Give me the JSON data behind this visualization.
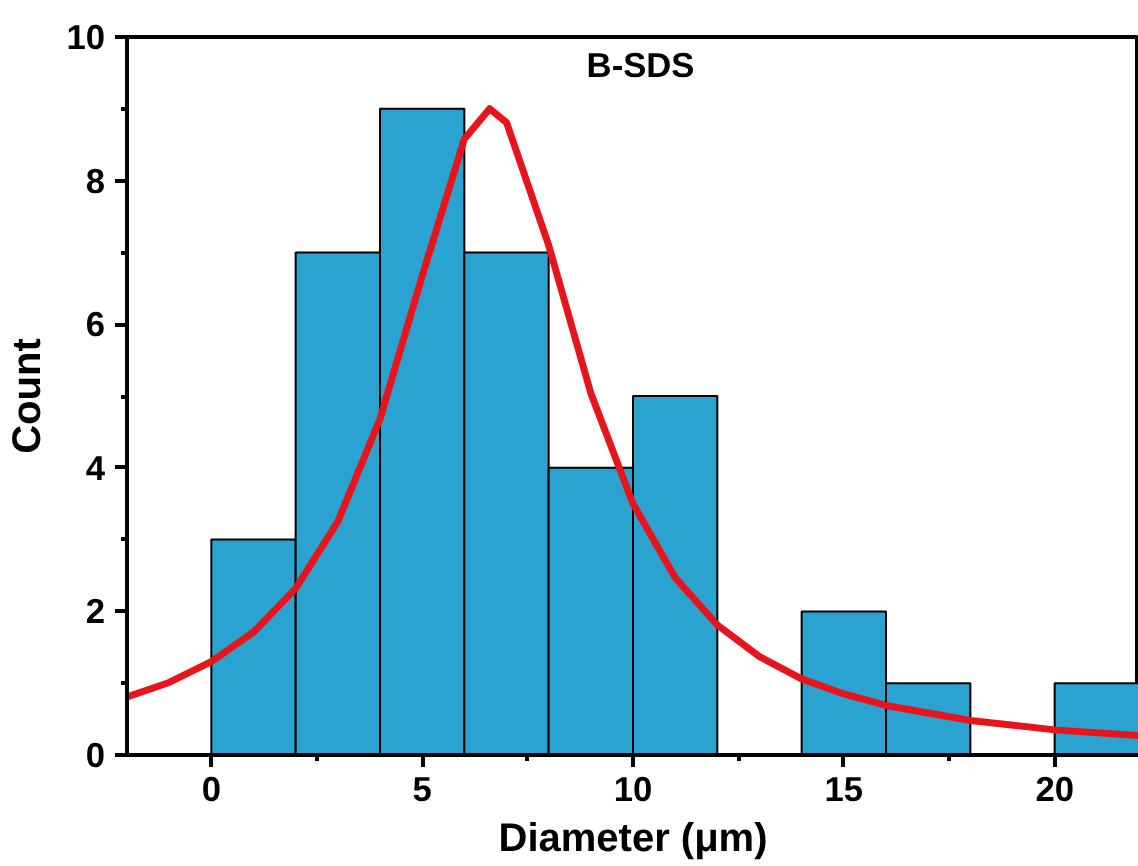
{
  "chart_data": {
    "type": "histogram",
    "title": "B-SDS",
    "xlabel": "Diameter (μm)",
    "ylabel": "Count",
    "bins": [
      0,
      2,
      4,
      6,
      8,
      10,
      12,
      14,
      16,
      18,
      20,
      22
    ],
    "values": [
      3,
      7,
      9,
      7,
      4,
      5,
      0,
      2,
      1,
      0,
      1
    ],
    "color": "#2ba3d0",
    "series": [
      {
        "type": "line",
        "color": "#e8141c",
        "x": [
          -2,
          -1,
          0,
          1,
          2,
          3,
          4,
          5,
          6,
          6.6,
          7,
          8,
          9,
          10,
          11,
          12,
          13,
          14,
          15,
          16,
          18,
          20,
          22
        ],
        "values": [
          0.81,
          1.01,
          1.3,
          1.71,
          2.32,
          3.25,
          4.68,
          6.67,
          8.58,
          9,
          8.81,
          7.1,
          5.04,
          3.5,
          2.47,
          1.81,
          1.37,
          1.06,
          0.85,
          0.69,
          0.48,
          0.35,
          0.27
        ]
      }
    ],
    "xlim": [
      -2,
      22
    ],
    "ylim": [
      0,
      10
    ],
    "xticks": [
      0,
      5,
      10,
      15,
      20
    ],
    "yticks": [
      0,
      2,
      4,
      6,
      8,
      10
    ]
  }
}
